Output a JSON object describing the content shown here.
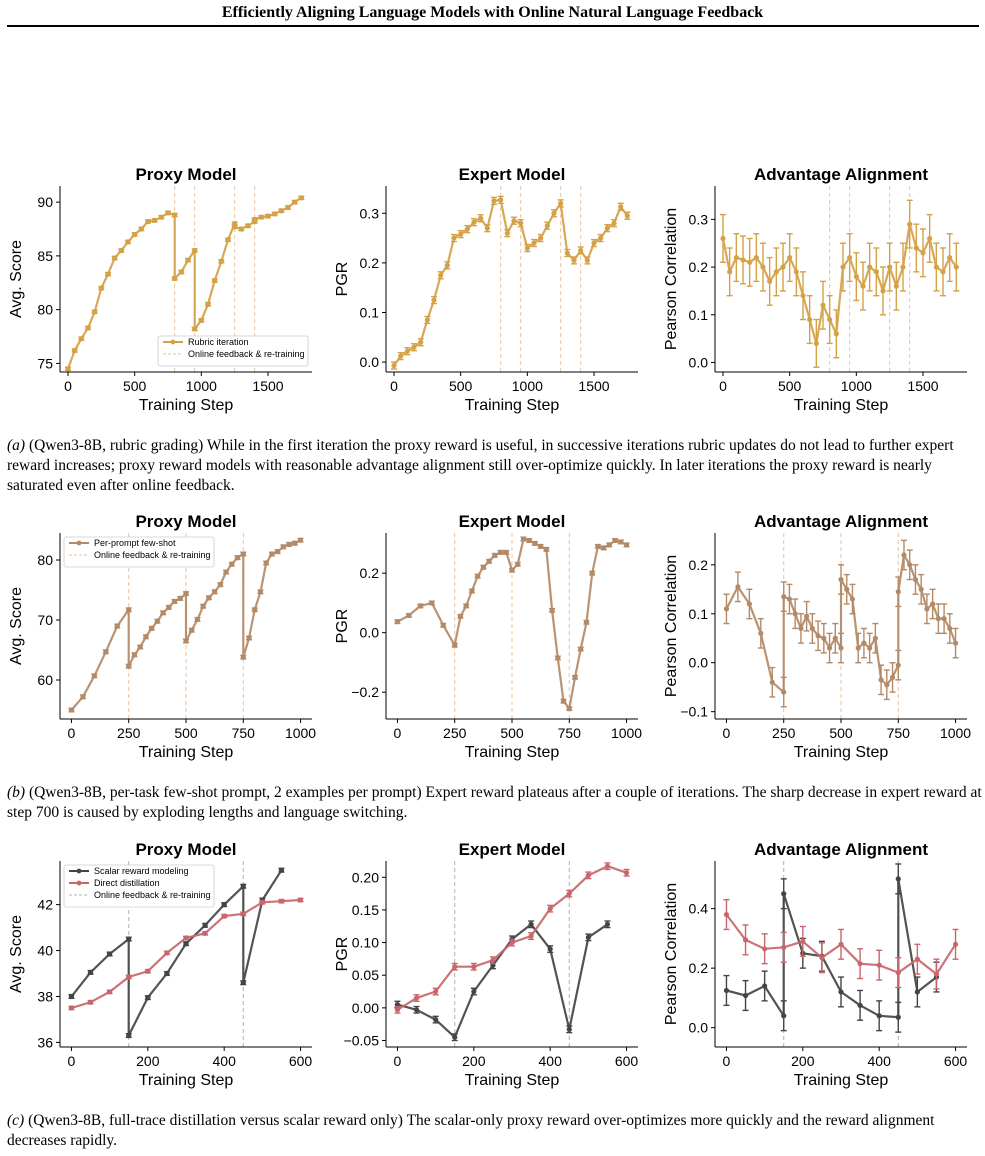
{
  "page": {
    "title": "Efficiently Aligning Language Models with Online Natural Language Feedback"
  },
  "captions": [
    {
      "label": "(a)",
      "text": " (Qwen3-8B, rubric grading) While in the first iteration the proxy reward is useful, in successive iterations rubric updates do not lead to further expert reward increases; proxy reward models with reasonable advantage alignment still over-optimize quickly. In later iterations the proxy reward is nearly saturated even after online feedback."
    },
    {
      "label": "(b)",
      "text": " (Qwen3-8B, per-task few-shot prompt, 2 examples per prompt) Expert reward plateaus after a couple of iterations. The sharp decrease in expert reward at step 700 is caused by exploding lengths and language switching."
    },
    {
      "label": "(c)",
      "text": " (Qwen3-8B, full-trace distillation versus scalar reward only) The scalar-only proxy reward over-optimizes more quickly and the reward alignment decreases rapidly."
    }
  ],
  "chart_data": [
    {
      "type": "line",
      "title": "Proxy Model",
      "xlabel": "Training Step",
      "ylabel": "Avg. Score",
      "xlim": [
        -60,
        1830
      ],
      "ylim": [
        74.2,
        91.5
      ],
      "xticks": [
        0,
        500,
        1000,
        1500
      ],
      "yticks": [
        75,
        80,
        85,
        90
      ],
      "vlines": [
        800,
        950,
        1250,
        1400
      ],
      "vline_color": "#ecc39e",
      "legend_position": "lower-right",
      "series": [
        {
          "name": "Rubric iteration",
          "color": "#d4a147",
          "err": 0.15,
          "x": [
            0,
            50,
            100,
            150,
            200,
            250,
            300,
            350,
            400,
            450,
            500,
            550,
            600,
            650,
            700,
            750,
            800,
            800,
            850,
            900,
            950,
            950,
            1000,
            1050,
            1100,
            1150,
            1200,
            1250,
            1250,
            1300,
            1350,
            1400,
            1400,
            1450,
            1500,
            1550,
            1600,
            1650,
            1700,
            1750
          ],
          "y": [
            74.5,
            76.2,
            77.3,
            78.3,
            79.8,
            82,
            83.3,
            84.8,
            85.5,
            86.3,
            87,
            87.5,
            88.2,
            88.3,
            88.6,
            89,
            88.8,
            82.9,
            83.5,
            84.6,
            85.5,
            78.2,
            79,
            80.5,
            82.7,
            84.5,
            86.5,
            88,
            87.7,
            87.5,
            87.8,
            88.2,
            88.4,
            88.6,
            88.7,
            88.9,
            89.2,
            89.5,
            90,
            90.4
          ]
        },
        {
          "name": "Online feedback & re-training",
          "color": "#ecc39e",
          "dashed": true,
          "x": [],
          "y": []
        }
      ]
    },
    {
      "type": "line",
      "title": "Expert Model",
      "xlabel": "Training Step",
      "ylabel": "PGR",
      "xlim": [
        -60,
        1830
      ],
      "ylim": [
        -0.02,
        0.355
      ],
      "xticks": [
        0,
        500,
        1000,
        1500
      ],
      "yticks": [
        0.0,
        0.1,
        0.2,
        0.3
      ],
      "tick_decimals": 1,
      "vlines": [
        800,
        950,
        1250,
        1400
      ],
      "vline_color": "#ecc39e",
      "series": [
        {
          "name": "",
          "color": "#d4a147",
          "err": 0.007,
          "x": [
            0,
            50,
            100,
            150,
            200,
            250,
            300,
            350,
            400,
            450,
            500,
            550,
            600,
            650,
            700,
            750,
            800,
            850,
            900,
            950,
            1000,
            1050,
            1100,
            1150,
            1200,
            1250,
            1300,
            1350,
            1400,
            1450,
            1500,
            1550,
            1600,
            1650,
            1700,
            1750
          ],
          "y": [
            -0.007,
            0.012,
            0.022,
            0.03,
            0.04,
            0.085,
            0.125,
            0.175,
            0.195,
            0.25,
            0.258,
            0.268,
            0.282,
            0.29,
            0.27,
            0.325,
            0.327,
            0.26,
            0.285,
            0.28,
            0.23,
            0.24,
            0.25,
            0.275,
            0.3,
            0.32,
            0.22,
            0.205,
            0.225,
            0.205,
            0.24,
            0.25,
            0.27,
            0.28,
            0.313,
            0.295
          ]
        }
      ]
    },
    {
      "type": "line",
      "title": "Advantage Alignment",
      "xlabel": "Training Step",
      "ylabel": "Pearson Correlation",
      "xlim": [
        -60,
        1830
      ],
      "ylim": [
        -0.02,
        0.37
      ],
      "xticks": [
        0,
        500,
        1000,
        1500
      ],
      "yticks": [
        0.0,
        0.1,
        0.2,
        0.3
      ],
      "tick_decimals": 1,
      "vlines": [
        800,
        950,
        1250,
        1400
      ],
      "vline_color": "#ecc39e",
      "series": [
        {
          "name": "",
          "color": "#d4a147",
          "err": 0.05,
          "x": [
            0,
            50,
            100,
            150,
            200,
            250,
            300,
            350,
            400,
            450,
            500,
            550,
            600,
            650,
            700,
            750,
            800,
            850,
            900,
            950,
            1000,
            1050,
            1100,
            1150,
            1200,
            1250,
            1300,
            1350,
            1400,
            1450,
            1500,
            1550,
            1600,
            1650,
            1700,
            1750
          ],
          "y": [
            0.26,
            0.19,
            0.22,
            0.215,
            0.21,
            0.22,
            0.2,
            0.17,
            0.19,
            0.2,
            0.22,
            0.19,
            0.14,
            0.09,
            0.04,
            0.12,
            0.09,
            0.06,
            0.2,
            0.22,
            0.18,
            0.16,
            0.2,
            0.19,
            0.15,
            0.2,
            0.16,
            0.2,
            0.29,
            0.24,
            0.23,
            0.26,
            0.2,
            0.19,
            0.22,
            0.2
          ]
        }
      ]
    },
    {
      "type": "line",
      "title": "Proxy Model",
      "xlabel": "Training Step",
      "ylabel": "Avg. Score",
      "xlim": [
        -50,
        1050
      ],
      "ylim": [
        53.5,
        84.5
      ],
      "xticks": [
        0,
        250,
        500,
        750,
        1000
      ],
      "yticks": [
        60,
        70,
        80
      ],
      "vlines": [
        250,
        500,
        750
      ],
      "vline_color": "#ecc39e",
      "legend_position": "top-left",
      "series": [
        {
          "name": "Per-prompt few-shot",
          "color": "#b38a67",
          "err": 0.3,
          "x": [
            0,
            50,
            100,
            150,
            200,
            250,
            250,
            275,
            300,
            325,
            350,
            375,
            400,
            425,
            450,
            475,
            500,
            500,
            525,
            550,
            575,
            600,
            625,
            650,
            675,
            700,
            725,
            750,
            750,
            775,
            800,
            825,
            850,
            875,
            900,
            925,
            950,
            975,
            1000
          ],
          "y": [
            55,
            57.2,
            60.7,
            64.7,
            69,
            71.7,
            62.3,
            64.2,
            65.5,
            67.2,
            68.6,
            69.8,
            71.2,
            72.1,
            73.1,
            73.6,
            74.4,
            66.5,
            68.3,
            70.1,
            72.3,
            73.7,
            74.7,
            75.9,
            78,
            79.3,
            80.4,
            81,
            63.8,
            67,
            71.7,
            74.7,
            79.5,
            81,
            81.4,
            82.2,
            82.6,
            82.8,
            83.3
          ]
        },
        {
          "name": "Online feedback & re-training",
          "color": "#ecc39e",
          "dashed": true,
          "x": [],
          "y": []
        }
      ]
    },
    {
      "type": "line",
      "title": "Expert Model",
      "xlabel": "Training Step",
      "ylabel": "PGR",
      "xlim": [
        -50,
        1050
      ],
      "ylim": [
        -0.29,
        0.335
      ],
      "xticks": [
        0,
        250,
        500,
        750,
        1000
      ],
      "yticks": [
        -0.2,
        0.0,
        0.2
      ],
      "tick_decimals": 1,
      "vlines": [
        250,
        500,
        750
      ],
      "vline_color": "#ecc39e",
      "series": [
        {
          "name": "",
          "color": "#b38a67",
          "err": 0.006,
          "x": [
            0,
            50,
            100,
            150,
            200,
            250,
            275,
            300,
            325,
            350,
            375,
            400,
            425,
            450,
            475,
            500,
            525,
            550,
            575,
            600,
            625,
            650,
            675,
            700,
            725,
            750,
            775,
            800,
            825,
            850,
            875,
            900,
            925,
            950,
            975,
            1000
          ],
          "y": [
            0.037,
            0.058,
            0.09,
            0.1,
            0.025,
            -0.042,
            0.055,
            0.09,
            0.14,
            0.19,
            0.22,
            0.24,
            0.26,
            0.27,
            0.27,
            0.21,
            0.23,
            0.315,
            0.31,
            0.3,
            0.29,
            0.28,
            0.075,
            -0.085,
            -0.23,
            -0.255,
            -0.15,
            -0.055,
            0.035,
            0.2,
            0.29,
            0.285,
            0.295,
            0.31,
            0.305,
            0.295
          ]
        }
      ]
    },
    {
      "type": "line",
      "title": "Advantage Alignment",
      "xlabel": "Training Step",
      "ylabel": "Pearson Correlation",
      "xlim": [
        -50,
        1050
      ],
      "ylim": [
        -0.115,
        0.265
      ],
      "xticks": [
        0,
        250,
        500,
        750,
        1000
      ],
      "yticks": [
        -0.1,
        0.0,
        0.1,
        0.2
      ],
      "tick_decimals": 1,
      "vlines": [
        250,
        500,
        750
      ],
      "vline_color": "#ecc39e",
      "series": [
        {
          "name": "",
          "color": "#b38a67",
          "err": 0.03,
          "x": [
            0,
            50,
            100,
            150,
            200,
            250,
            250,
            275,
            300,
            325,
            350,
            375,
            400,
            425,
            450,
            475,
            500,
            500,
            525,
            550,
            575,
            600,
            625,
            650,
            675,
            700,
            725,
            750,
            750,
            775,
            800,
            825,
            850,
            875,
            900,
            925,
            950,
            975,
            1000
          ],
          "y": [
            0.11,
            0.155,
            0.12,
            0.06,
            -0.04,
            -0.06,
            0.135,
            0.13,
            0.1,
            0.07,
            0.095,
            0.07,
            0.055,
            0.05,
            0.03,
            0.05,
            0.03,
            0.17,
            0.15,
            0.13,
            0.03,
            0.04,
            0.03,
            0.05,
            -0.035,
            -0.045,
            -0.03,
            -0.005,
            0.145,
            0.22,
            0.2,
            0.17,
            0.15,
            0.11,
            0.12,
            0.09,
            0.09,
            0.07,
            0.04
          ]
        }
      ]
    },
    {
      "type": "line",
      "title": "Proxy Model",
      "xlabel": "Training Step",
      "ylabel": "Avg. Score",
      "xlim": [
        -30,
        630
      ],
      "ylim": [
        35.8,
        43.9
      ],
      "xticks": [
        0,
        200,
        400,
        600
      ],
      "yticks": [
        36,
        38,
        40,
        42
      ],
      "vlines": [
        150,
        450
      ],
      "vline_color": "#b0b0b0",
      "legend_position": "top-left",
      "series": [
        {
          "name": "Scalar reward modeling",
          "color": "#444444",
          "err": 0.08,
          "x": [
            0,
            50,
            100,
            150,
            150,
            200,
            250,
            300,
            350,
            400,
            450,
            450,
            500,
            550
          ],
          "y": [
            38,
            39.05,
            39.85,
            40.5,
            36.3,
            37.95,
            39,
            40.3,
            41.1,
            42,
            42.8,
            38.6,
            42.2,
            43.5
          ]
        },
        {
          "name": "Direct distillation",
          "color": "#c9666b",
          "err": 0.07,
          "x": [
            0,
            50,
            100,
            150,
            200,
            250,
            300,
            350,
            400,
            450,
            500,
            550,
            600
          ],
          "y": [
            37.5,
            37.75,
            38.2,
            38.85,
            39.1,
            39.9,
            40.55,
            40.75,
            41.5,
            41.6,
            42.1,
            42.15,
            42.2
          ]
        },
        {
          "name": "Online feedback & re-training",
          "color": "#b0b0b0",
          "dashed": true,
          "x": [],
          "y": []
        }
      ]
    },
    {
      "type": "line",
      "title": "Expert Model",
      "xlabel": "Training Step",
      "ylabel": "PGR",
      "xlim": [
        -30,
        630
      ],
      "ylim": [
        -0.06,
        0.225
      ],
      "xticks": [
        0,
        200,
        400,
        600
      ],
      "yticks": [
        -0.05,
        0.0,
        0.05,
        0.1,
        0.15,
        0.2
      ],
      "tick_decimals": 2,
      "vlines": [
        150,
        450
      ],
      "vline_color": "#b0b0b0",
      "series": [
        {
          "name": "Scalar reward modeling",
          "color": "#444444",
          "err": 0.005,
          "x": [
            0,
            50,
            100,
            150,
            200,
            250,
            300,
            350,
            400,
            450,
            500,
            550
          ],
          "y": [
            0.005,
            -0.003,
            -0.018,
            -0.045,
            0.025,
            0.065,
            0.105,
            0.128,
            0.09,
            -0.033,
            0.108,
            0.128
          ]
        },
        {
          "name": "Direct distillation",
          "color": "#c9666b",
          "err": 0.005,
          "x": [
            0,
            50,
            100,
            150,
            200,
            250,
            300,
            350,
            400,
            450,
            500,
            550,
            600
          ],
          "y": [
            -0.003,
            0.015,
            0.025,
            0.063,
            0.063,
            0.073,
            0.1,
            0.11,
            0.152,
            0.175,
            0.203,
            0.217,
            0.207
          ]
        }
      ]
    },
    {
      "type": "line",
      "title": "Advantage Alignment",
      "xlabel": "Training Step",
      "ylabel": "Pearson Correlation",
      "xlim": [
        -30,
        630
      ],
      "ylim": [
        -0.065,
        0.56
      ],
      "xticks": [
        0,
        200,
        400,
        600
      ],
      "yticks": [
        0.0,
        0.2,
        0.4
      ],
      "tick_decimals": 1,
      "vlines": [
        150,
        450
      ],
      "vline_color": "#b0b0b0",
      "series": [
        {
          "name": "Scalar reward modeling",
          "color": "#444444",
          "err": 0.05,
          "x": [
            0,
            50,
            100,
            150,
            150,
            200,
            250,
            300,
            350,
            400,
            450,
            450,
            500,
            550
          ],
          "y": [
            0.125,
            0.108,
            0.14,
            0.04,
            0.45,
            0.25,
            0.24,
            0.12,
            0.075,
            0.04,
            0.035,
            0.5,
            0.12,
            0.17
          ]
        },
        {
          "name": "Direct distillation",
          "color": "#c9666b",
          "err": 0.05,
          "x": [
            0,
            50,
            100,
            150,
            200,
            250,
            300,
            350,
            400,
            450,
            500,
            550,
            600
          ],
          "y": [
            0.38,
            0.295,
            0.265,
            0.27,
            0.29,
            0.235,
            0.28,
            0.215,
            0.21,
            0.185,
            0.23,
            0.18,
            0.28
          ]
        }
      ]
    }
  ]
}
